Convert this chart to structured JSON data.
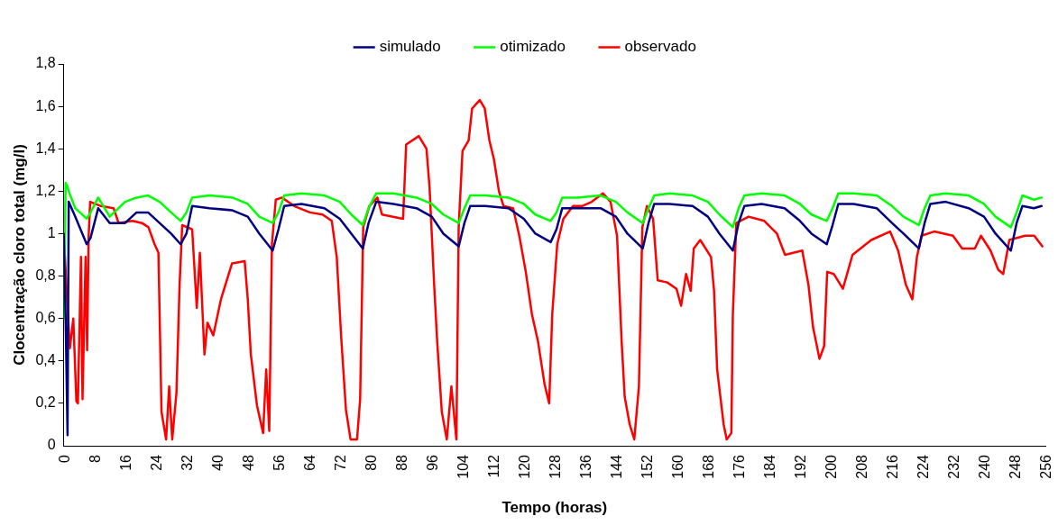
{
  "chart_data": {
    "type": "line",
    "xlabel": "Tempo (horas)",
    "ylabel": "Clocentração cloro total (mg/l)",
    "xlim": [
      0,
      256
    ],
    "xticks": [
      0,
      8,
      16,
      24,
      32,
      40,
      48,
      56,
      64,
      72,
      80,
      88,
      96,
      104,
      112,
      120,
      128,
      136,
      144,
      152,
      160,
      168,
      176,
      184,
      192,
      200,
      208,
      216,
      224,
      232,
      240,
      248,
      256
    ],
    "ylim": [
      0,
      1.8
    ],
    "yticks": [
      {
        "value": 0,
        "label": "0"
      },
      {
        "value": 0.2,
        "label": "0,2"
      },
      {
        "value": 0.4,
        "label": "0,4"
      },
      {
        "value": 0.6,
        "label": "0,6"
      },
      {
        "value": 0.8,
        "label": "0,8"
      },
      {
        "value": 1,
        "label": "1"
      },
      {
        "value": 1.2,
        "label": "1,2"
      },
      {
        "value": 1.4,
        "label": "1,4"
      },
      {
        "value": 1.6,
        "label": "1,6"
      },
      {
        "value": 1.8,
        "label": "1,8"
      }
    ],
    "grid": false,
    "legend": "top",
    "marker": "none",
    "line_style": "solid",
    "series": [
      {
        "name": "simulado",
        "color": "#000080",
        "x": [
          0,
          0.5,
          1,
          1.3,
          3,
          6,
          7,
          9,
          12,
          16,
          19,
          22,
          25,
          28,
          30.5,
          32,
          33.5,
          38,
          44,
          48,
          51,
          54.5,
          56,
          57.5,
          62,
          68,
          72,
          75,
          78,
          79.5,
          81.5,
          86,
          92,
          96,
          99,
          103,
          104.5,
          106,
          110,
          116,
          120,
          123,
          127,
          128.5,
          130,
          134,
          140,
          144,
          147,
          151,
          152.5,
          154,
          158,
          164,
          168,
          171,
          174.5,
          176,
          177.5,
          182,
          188,
          192,
          195,
          199,
          200.5,
          202,
          206,
          212,
          216,
          219,
          223,
          224.5,
          226,
          230,
          236,
          240,
          243,
          247,
          248.5,
          250,
          253,
          255
        ],
        "values": [
          1.0,
          0.6,
          0.05,
          1.15,
          1.08,
          0.95,
          0.98,
          1.12,
          1.05,
          1.05,
          1.1,
          1.1,
          1.05,
          1.0,
          0.95,
          1.0,
          1.13,
          1.12,
          1.11,
          1.08,
          1.0,
          0.92,
          1.02,
          1.13,
          1.14,
          1.12,
          1.07,
          1.0,
          0.93,
          1.05,
          1.15,
          1.14,
          1.12,
          1.08,
          1.0,
          0.94,
          1.05,
          1.13,
          1.13,
          1.12,
          1.07,
          1.0,
          0.96,
          1.02,
          1.12,
          1.12,
          1.12,
          1.08,
          1.0,
          0.93,
          1.05,
          1.14,
          1.14,
          1.13,
          1.08,
          1.0,
          0.92,
          1.05,
          1.13,
          1.14,
          1.12,
          1.06,
          1.0,
          0.95,
          1.04,
          1.14,
          1.14,
          1.12,
          1.05,
          1.0,
          0.93,
          1.05,
          1.14,
          1.15,
          1.12,
          1.08,
          1.0,
          0.92,
          1.05,
          1.13,
          1.12,
          1.13
        ]
      },
      {
        "name": "otimizado",
        "color": "#00ff00",
        "x": [
          0,
          0.5,
          1,
          1.3,
          3,
          6,
          7,
          9,
          12,
          16,
          19,
          22,
          25,
          28,
          30.5,
          32,
          33.5,
          38,
          44,
          48,
          51,
          54.5,
          56,
          57.5,
          62,
          68,
          72,
          75,
          78,
          79.5,
          81.5,
          86,
          92,
          96,
          99,
          103,
          104.5,
          106,
          110,
          116,
          120,
          123,
          127,
          128.5,
          130,
          134,
          140,
          144,
          147,
          151,
          152.5,
          154,
          158,
          164,
          168,
          171,
          174.5,
          176,
          177.5,
          182,
          188,
          192,
          195,
          199,
          200.5,
          202,
          206,
          212,
          216,
          219,
          223,
          224.5,
          226,
          230,
          236,
          240,
          243,
          247,
          248.5,
          250,
          253,
          255
        ],
        "values": [
          0.6,
          1.24,
          1.22,
          1.2,
          1.12,
          1.07,
          1.1,
          1.17,
          1.08,
          1.15,
          1.17,
          1.18,
          1.15,
          1.1,
          1.06,
          1.1,
          1.17,
          1.18,
          1.17,
          1.14,
          1.08,
          1.05,
          1.1,
          1.18,
          1.19,
          1.18,
          1.15,
          1.09,
          1.04,
          1.12,
          1.19,
          1.19,
          1.17,
          1.14,
          1.09,
          1.05,
          1.12,
          1.18,
          1.18,
          1.17,
          1.14,
          1.09,
          1.06,
          1.1,
          1.17,
          1.17,
          1.18,
          1.15,
          1.1,
          1.05,
          1.12,
          1.18,
          1.19,
          1.18,
          1.15,
          1.09,
          1.03,
          1.12,
          1.18,
          1.19,
          1.18,
          1.14,
          1.09,
          1.06,
          1.12,
          1.19,
          1.19,
          1.18,
          1.13,
          1.08,
          1.04,
          1.12,
          1.18,
          1.19,
          1.18,
          1.14,
          1.08,
          1.03,
          1.1,
          1.18,
          1.16,
          1.17
        ]
      },
      {
        "name": "observado",
        "color": "#ff0000",
        "x": [
          0,
          0.8,
          1.6,
          2.5,
          3.3,
          3.7,
          4.5,
          4.9,
          5.7,
          6.1,
          6.5,
          6.9,
          9.7,
          13,
          14.3,
          17.9,
          20.4,
          22.1,
          23.7,
          24.7,
          25.5,
          26.7,
          27.5,
          28.3,
          29.4,
          30.2,
          30.9,
          33.5,
          34.7,
          35.5,
          36.7,
          37.5,
          39,
          41,
          43.9,
          47.2,
          48,
          48.8,
          50.4,
          52,
          52.8,
          53.6,
          54.3,
          55.3,
          56.9,
          60.1,
          64.2,
          67.5,
          69.9,
          71.2,
          72.4,
          73.6,
          74.8,
          76.5,
          77.3,
          78.1,
          79.7,
          81.8,
          83,
          88.5,
          89.3,
          92.6,
          94.6,
          95.4,
          96.6,
          97.4,
          98.6,
          99.9,
          101.1,
          102.4,
          103,
          104,
          105.6,
          106.5,
          108.5,
          109.8,
          111,
          112.2,
          113.5,
          114.7,
          117.2,
          118.8,
          120.5,
          122.1,
          123.7,
          125.4,
          126.6,
          127.4,
          128.7,
          130.3,
          132.8,
          135.2,
          137.7,
          140.6,
          142.6,
          144.3,
          145.5,
          146.3,
          147.6,
          148.8,
          150,
          150.9,
          152.1,
          153.7,
          154.9,
          157.4,
          159.8,
          161,
          162.3,
          163.5,
          164.3,
          166,
          168.8,
          169.6,
          170.4,
          172.1,
          172.9,
          174.1,
          174.5,
          175.4,
          178.6,
          182.7,
          186,
          188.1,
          192.6,
          194.2,
          195.4,
          197.1,
          198.3,
          199.1,
          200.8,
          203.2,
          205.7,
          210.6,
          215.5,
          217.6,
          219.6,
          221.3,
          222.5,
          223.7,
          227,
          231.9,
          234.3,
          237.6,
          239.2,
          241.7,
          243.7,
          245,
          246.6,
          250.7,
          253.1,
          255.2
        ],
        "values": [
          1.0,
          0.72,
          0.46,
          0.6,
          0.21,
          0.2,
          0.89,
          0.22,
          0.89,
          0.45,
          0.99,
          1.15,
          1.13,
          1.12,
          1.05,
          1.06,
          1.05,
          1.03,
          0.95,
          0.91,
          0.16,
          0.03,
          0.28,
          0.03,
          0.25,
          0.75,
          1.04,
          1.02,
          0.65,
          0.91,
          0.43,
          0.58,
          0.52,
          0.69,
          0.86,
          0.87,
          0.69,
          0.43,
          0.19,
          0.06,
          0.36,
          0.07,
          0.95,
          1.16,
          1.17,
          1.13,
          1.1,
          1.09,
          1.06,
          0.89,
          0.5,
          0.17,
          0.03,
          0.03,
          0.22,
          1.03,
          1.13,
          1.17,
          1.09,
          1.07,
          1.42,
          1.46,
          1.4,
          1.22,
          0.76,
          0.49,
          0.16,
          0.03,
          0.28,
          0.03,
          1.03,
          1.39,
          1.44,
          1.59,
          1.63,
          1.59,
          1.44,
          1.35,
          1.2,
          1.13,
          1.12,
          0.99,
          0.82,
          0.62,
          0.49,
          0.29,
          0.2,
          0.62,
          0.95,
          1.07,
          1.13,
          1.13,
          1.15,
          1.19,
          1.15,
          0.99,
          0.49,
          0.23,
          0.1,
          0.03,
          0.28,
          1.03,
          1.13,
          1.07,
          0.78,
          0.77,
          0.74,
          0.66,
          0.81,
          0.73,
          0.93,
          0.97,
          0.89,
          0.73,
          0.36,
          0.1,
          0.03,
          0.06,
          0.62,
          1.05,
          1.08,
          1.06,
          1.0,
          0.9,
          0.92,
          0.76,
          0.56,
          0.41,
          0.47,
          0.82,
          0.81,
          0.74,
          0.9,
          0.97,
          1.01,
          0.92,
          0.76,
          0.69,
          0.89,
          0.99,
          1.01,
          0.99,
          0.93,
          0.93,
          0.99,
          0.92,
          0.83,
          0.81,
          0.97,
          0.99,
          0.99,
          0.94
        ]
      }
    ]
  }
}
